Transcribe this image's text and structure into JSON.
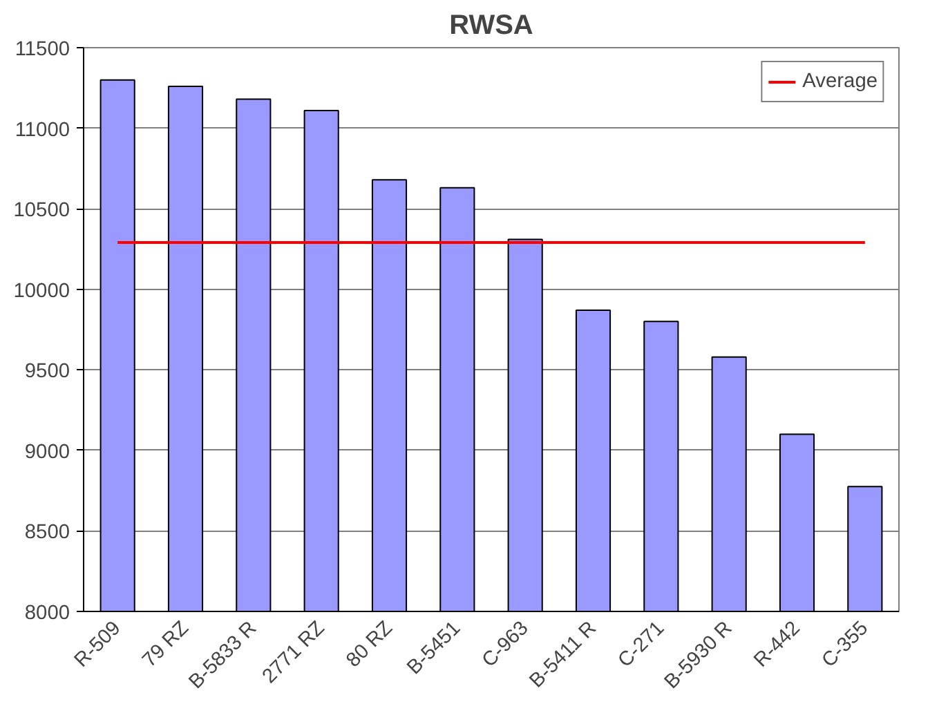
{
  "chart_data": {
    "type": "bar",
    "title": "RWSA",
    "categories": [
      "R-509",
      "79 RZ",
      "B-5833 R",
      "2771 RZ",
      "80 RZ",
      "B-5451",
      "C-963",
      "B-5411 R",
      "C-271",
      "B-5930 R",
      "R-442",
      "C-355"
    ],
    "series": [
      {
        "color": "#9999ff",
        "values": [
          11300,
          11260,
          11180,
          11110,
          10680,
          10630,
          10310,
          9870,
          9800,
          9580,
          9100,
          8775
        ]
      },
      {
        "type": "line",
        "name": "Average",
        "color": "#ff0000",
        "values": [
          10290,
          10290,
          10290,
          10290,
          10290,
          10290,
          10290,
          10290,
          10290,
          10290,
          10290,
          10290
        ]
      }
    ],
    "ylim": [
      8000,
      11500
    ],
    "yticks": [
      8000,
      8500,
      9000,
      9500,
      10000,
      10500,
      11000,
      11500
    ],
    "grid": "y",
    "legend": "top right",
    "marker": "none"
  }
}
